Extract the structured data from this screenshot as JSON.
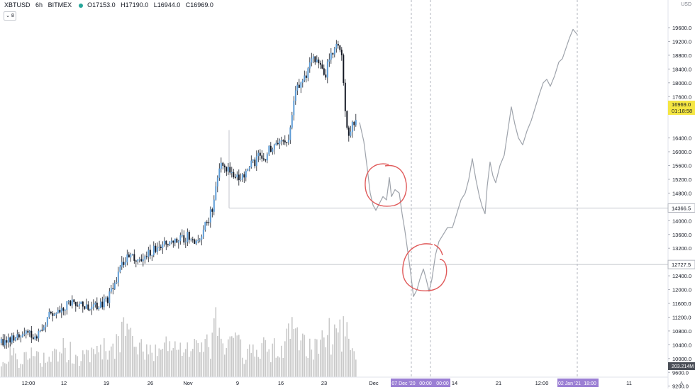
{
  "header": {
    "symbol": "XBTUSD",
    "interval": "6h",
    "exchange": "BITMEX",
    "open": "O17153.0",
    "high": "H17190.0",
    "low": "L16944.0",
    "close": "C16969.0",
    "indicator_count": "8"
  },
  "axis": {
    "currency": "USD",
    "price_ticks": [
      19600,
      19200,
      18800,
      18400,
      18000,
      17600,
      17200,
      16400,
      16000,
      15600,
      15200,
      14800,
      14000,
      13600,
      13200,
      12400,
      12000,
      11600,
      11200,
      10800,
      10400,
      10000,
      9600,
      9200
    ],
    "date_ticks": [
      "12:00",
      "12",
      "19",
      "26",
      "Nov",
      "9",
      "16",
      "23",
      "Dec",
      "14",
      "21",
      "12:00",
      "11"
    ],
    "time_axis_badges": [
      "07 Dec '20",
      "00:00",
      "00:00",
      "02 Jan '21",
      "18:00"
    ],
    "auto_label": "A"
  },
  "badges": {
    "current_price": "16969.0",
    "countdown": "01:18:58",
    "level_high": "14366.5",
    "level_low": "12727.5",
    "volume": "203.214M"
  },
  "colors": {
    "up": "#26a69a",
    "down": "#131722",
    "candle_up_fill": "#5b9bd5",
    "volume": "#c9c9c9",
    "drawing": "#9ea3ab",
    "annotation": "#e05a5a",
    "price_badge": "#f5e642",
    "time_badge": "#9b7fd4"
  },
  "chart_data": {
    "type": "candlestick",
    "title": "",
    "xlabel": "",
    "ylabel": "",
    "ylim": [
      9000,
      19900
    ],
    "grid": false,
    "horizontal_levels": [
      14366.5,
      12727.5
    ],
    "price_path": [
      [
        0,
        10450
      ],
      [
        10,
        10520
      ],
      [
        20,
        10580
      ],
      [
        30,
        10640
      ],
      [
        40,
        10700
      ],
      [
        48,
        10600
      ],
      [
        55,
        10800
      ],
      [
        62,
        11050
      ],
      [
        70,
        11300
      ],
      [
        80,
        11420
      ],
      [
        90,
        11500
      ],
      [
        100,
        11600
      ],
      [
        110,
        11550
      ],
      [
        120,
        11500
      ],
      [
        130,
        11480
      ],
      [
        140,
        11560
      ],
      [
        150,
        11700
      ],
      [
        158,
        12000
      ],
      [
        165,
        12400
      ],
      [
        172,
        12800
      ],
      [
        180,
        12950
      ],
      [
        190,
        12900
      ],
      [
        200,
        12950
      ],
      [
        210,
        13050
      ],
      [
        220,
        13200
      ],
      [
        230,
        13400
      ],
      [
        240,
        13350
      ],
      [
        250,
        13450
      ],
      [
        260,
        13500
      ],
      [
        268,
        13600
      ],
      [
        275,
        13400
      ],
      [
        283,
        13600
      ],
      [
        290,
        13900
      ],
      [
        298,
        14300
      ],
      [
        303,
        14900
      ],
      [
        308,
        15600
      ],
      [
        315,
        15700
      ],
      [
        322,
        15400
      ],
      [
        330,
        15300
      ],
      [
        338,
        15200
      ],
      [
        345,
        15400
      ],
      [
        352,
        15600
      ],
      [
        358,
        15700
      ],
      [
        365,
        15900
      ],
      [
        372,
        15800
      ],
      [
        380,
        16100
      ],
      [
        388,
        16300
      ],
      [
        395,
        16300
      ],
      [
        402,
        16200
      ],
      [
        408,
        16600
      ],
      [
        413,
        17500
      ],
      [
        418,
        17800
      ],
      [
        425,
        18000
      ],
      [
        432,
        18300
      ],
      [
        438,
        18700
      ],
      [
        445,
        18600
      ],
      [
        452,
        18500
      ],
      [
        458,
        18200
      ],
      [
        463,
        18700
      ],
      [
        468,
        18800
      ],
      [
        473,
        19000
      ],
      [
        478,
        19100
      ],
      [
        482,
        18600
      ],
      [
        486,
        17100
      ],
      [
        490,
        16500
      ],
      [
        495,
        16700
      ],
      [
        500,
        16900
      ]
    ],
    "volume_profile": [
      [
        0,
        0.35
      ],
      [
        15,
        0.45
      ],
      [
        30,
        0.3
      ],
      [
        45,
        0.4
      ],
      [
        60,
        0.35
      ],
      [
        75,
        0.45
      ],
      [
        90,
        0.55
      ],
      [
        105,
        0.4
      ],
      [
        120,
        0.35
      ],
      [
        135,
        0.45
      ],
      [
        150,
        0.55
      ],
      [
        165,
        0.6
      ],
      [
        175,
        0.9
      ],
      [
        190,
        0.55
      ],
      [
        205,
        0.45
      ],
      [
        220,
        0.5
      ],
      [
        235,
        0.55
      ],
      [
        250,
        0.45
      ],
      [
        265,
        0.5
      ],
      [
        280,
        0.55
      ],
      [
        295,
        0.6
      ],
      [
        305,
        0.95
      ],
      [
        320,
        0.55
      ],
      [
        330,
        0.7
      ],
      [
        340,
        0.45
      ],
      [
        355,
        0.5
      ],
      [
        370,
        0.55
      ],
      [
        385,
        0.5
      ],
      [
        400,
        0.6
      ],
      [
        410,
        0.95
      ],
      [
        420,
        0.6
      ],
      [
        435,
        0.65
      ],
      [
        450,
        0.55
      ],
      [
        462,
        0.85
      ],
      [
        475,
        0.7
      ],
      [
        485,
        1.0
      ],
      [
        495,
        0.55
      ],
      [
        502,
        0.3
      ]
    ],
    "projection_path": [
      [
        507,
        16850
      ],
      [
        513,
        16300
      ],
      [
        518,
        15500
      ],
      [
        522,
        14800
      ],
      [
        526,
        14450
      ],
      [
        530,
        14300
      ],
      [
        535,
        14500
      ],
      [
        540,
        14700
      ],
      [
        545,
        14600
      ],
      [
        549,
        15250
      ],
      [
        552,
        14700
      ],
      [
        557,
        14900
      ],
      [
        563,
        14800
      ],
      [
        567,
        14200
      ],
      [
        571,
        13700
      ],
      [
        575,
        13100
      ],
      [
        579,
        12500
      ],
      [
        583,
        11800
      ],
      [
        588,
        12000
      ],
      [
        592,
        12300
      ],
      [
        597,
        12600
      ],
      [
        601,
        12300
      ],
      [
        605,
        11950
      ],
      [
        609,
        12300
      ],
      [
        614,
        13000
      ],
      [
        619,
        13400
      ],
      [
        625,
        13600
      ],
      [
        631,
        13800
      ],
      [
        638,
        13800
      ],
      [
        644,
        14200
      ],
      [
        650,
        14600
      ],
      [
        656,
        14800
      ],
      [
        661,
        15200
      ],
      [
        666,
        15800
      ],
      [
        671,
        15200
      ],
      [
        676,
        14700
      ],
      [
        680,
        14400
      ],
      [
        684,
        14200
      ],
      [
        687,
        15000
      ],
      [
        691,
        15700
      ],
      [
        695,
        15300
      ],
      [
        699,
        15100
      ],
      [
        705,
        15600
      ],
      [
        711,
        15900
      ],
      [
        716,
        16600
      ],
      [
        721,
        17300
      ],
      [
        726,
        16800
      ],
      [
        731,
        16400
      ],
      [
        737,
        16200
      ],
      [
        743,
        16600
      ],
      [
        749,
        16900
      ],
      [
        755,
        17300
      ],
      [
        761,
        17700
      ],
      [
        766,
        18000
      ],
      [
        771,
        18100
      ],
      [
        776,
        17900
      ],
      [
        782,
        18200
      ],
      [
        788,
        18600
      ],
      [
        793,
        18700
      ],
      [
        798,
        19000
      ],
      [
        803,
        19300
      ],
      [
        808,
        19550
      ],
      [
        814,
        19400
      ]
    ]
  }
}
